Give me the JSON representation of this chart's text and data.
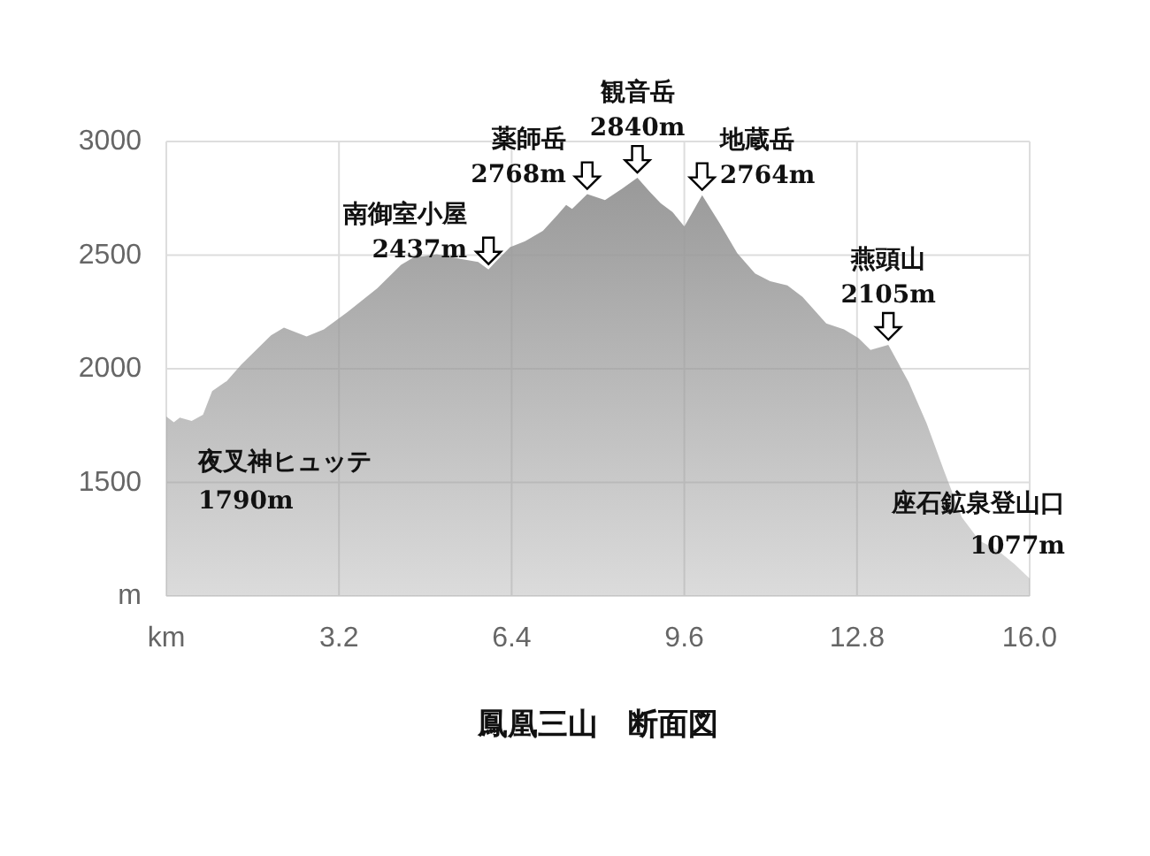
{
  "chart_data": {
    "type": "area",
    "title": "鳳凰三山　断面図",
    "x": [
      0,
      0.14,
      0.25,
      0.47,
      0.68,
      0.85,
      1.12,
      1.39,
      1.94,
      2.18,
      2.6,
      2.92,
      3.36,
      3.91,
      4.35,
      4.57,
      5.01,
      5.45,
      5.78,
      5.97,
      6.1,
      6.37,
      6.65,
      6.98,
      7.25,
      7.41,
      7.52,
      7.8,
      8.13,
      8.45,
      8.73,
      8.95,
      9.16,
      9.38,
      9.6,
      9.93,
      10.26,
      10.58,
      10.91,
      11.19,
      11.51,
      11.79,
      12.23,
      12.56,
      12.83,
      13.05,
      13.38,
      13.76,
      14.09,
      14.41,
      14.74,
      15.07,
      15.39,
      15.72,
      16.0
    ],
    "series": [
      {
        "color": "#999999",
        "values": [
          1790,
          1765,
          1785,
          1770,
          1798,
          1902,
          1946,
          2018,
          2147,
          2181,
          2142,
          2173,
          2250,
          2354,
          2457,
          2488,
          2504,
          2483,
          2470,
          2437,
          2470,
          2535,
          2561,
          2607,
          2677,
          2721,
          2703,
          2768,
          2742,
          2793,
          2840,
          2781,
          2729,
          2690,
          2626,
          2764,
          2638,
          2509,
          2419,
          2385,
          2367,
          2316,
          2199,
          2173,
          2134,
          2083,
          2105,
          1940,
          1760,
          1553,
          1347,
          1243,
          1204,
          1140,
          1077
        ]
      }
    ],
    "xlim": [
      0,
      16
    ],
    "xticks": [
      {
        "value": 0,
        "label": "km"
      },
      3.2,
      6.4,
      9.6,
      12.8,
      {
        "value": 16,
        "label": "16.0"
      }
    ],
    "ylim": [
      1000,
      3000
    ],
    "yticks": [
      {
        "value": 1000,
        "label": "m"
      },
      1500,
      2000,
      2500,
      3000
    ],
    "grid": true,
    "annotations": [
      {
        "text": "夜叉神ヒュッテ\n1790m",
        "x": 0,
        "y": 1790
      },
      {
        "text": "南御室小屋\n2437m",
        "x": 5.97,
        "y": 2437
      },
      {
        "text": "薬師岳\n2768m",
        "x": 7.8,
        "y": 2768
      },
      {
        "text": "観音岳\n2840m",
        "x": 8.73,
        "y": 2840
      },
      {
        "text": "地蔵岳\n2764m",
        "x": 9.93,
        "y": 2764
      },
      {
        "text": "燕頭山\n2105m",
        "x": 13.38,
        "y": 2105
      },
      {
        "text": "座石鉱泉登山口\n1077m",
        "x": 16.0,
        "y": 1077
      }
    ]
  }
}
